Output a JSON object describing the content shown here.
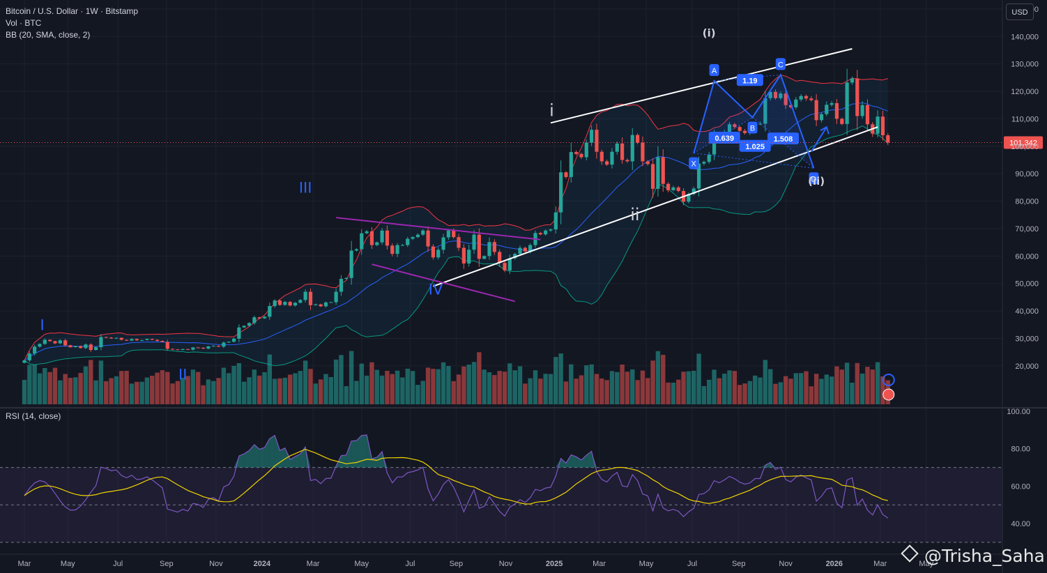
{
  "header": {
    "symbol_line": "Bitcoin / U.S. Dollar · 1W · Bitstamp",
    "vol_line": "Vol · BTC",
    "bb_line": "BB (20, SMA, close, 2)",
    "rsi_line": "RSI (14, close)"
  },
  "currency_button": "USD",
  "last_price": "101,342",
  "watermark": "@Trisha_Saha",
  "colors": {
    "background": "#131722",
    "up": "#26a69a",
    "down": "#ef5350",
    "bb_upper": "#f23645",
    "bb_lower": "#089981",
    "bb_basis": "#2962ff",
    "rsi_line": "#7e57c2",
    "rsi_ma": "#f2d400",
    "pattern": "#2962ff",
    "wedge": "#9c27b0",
    "channel": "#ffffff"
  },
  "chart_data": [
    {
      "type": "candlestick",
      "title": "Bitcoin / U.S. Dollar · 1W · Bitstamp",
      "scale": "linear",
      "ylim": [
        6000,
        152000
      ],
      "y_ticks": [
        "150,000",
        "140,000",
        "130,000",
        "120,000",
        "110,000",
        "100,000",
        "90,000",
        "80,000",
        "70,000",
        "60,000",
        "50,000",
        "40,000",
        "30,000",
        "20,000"
      ],
      "x_ticks": [
        {
          "label": "Mar",
          "t": 0
        },
        {
          "label": "May",
          "t": 8.5
        },
        {
          "label": "Jul",
          "t": 18.3
        },
        {
          "label": "Sep",
          "t": 27.8
        },
        {
          "label": "Nov",
          "t": 37.5
        },
        {
          "label": "2024",
          "t": 46.5
        },
        {
          "label": "Mar",
          "t": 56.5
        },
        {
          "label": "May",
          "t": 66
        },
        {
          "label": "Jul",
          "t": 75.5
        },
        {
          "label": "Sep",
          "t": 84.5
        },
        {
          "label": "Nov",
          "t": 94.2
        },
        {
          "label": "2025",
          "t": 103.7
        },
        {
          "label": "Mar",
          "t": 112.5
        },
        {
          "label": "May",
          "t": 121.7
        },
        {
          "label": "Jul",
          "t": 130.7
        },
        {
          "label": "Sep",
          "t": 139.8
        },
        {
          "label": "Nov",
          "t": 149
        },
        {
          "label": "2026",
          "t": 158.5
        },
        {
          "label": "Mar",
          "t": 167.5
        },
        {
          "label": "May",
          "t": 176.5
        }
      ],
      "week_axis": "t = weeks since the Mar 2023 tick",
      "close": [
        22000,
        24500,
        27000,
        28000,
        29500,
        29000,
        28200,
        29300,
        27500,
        26800,
        27200,
        26500,
        27800,
        25800,
        26800,
        30500,
        30300,
        30000,
        30200,
        29500,
        29200,
        29800,
        29300,
        29400,
        29800,
        29500,
        29100,
        28700,
        26200,
        26000,
        25800,
        26100,
        25900,
        26700,
        26600,
        26300,
        27100,
        27300,
        27000,
        28500,
        28800,
        29900,
        34000,
        34600,
        35600,
        37700,
        37300,
        37900,
        41800,
        43800,
        42200,
        43300,
        42000,
        43000,
        44000,
        47000,
        42100,
        42400,
        41700,
        43100,
        43200,
        47000,
        51700,
        52000,
        62000,
        62500,
        68300,
        69000,
        64000,
        65000,
        69300,
        63800,
        60800,
        64000,
        64000,
        66300,
        66900,
        67800,
        69300,
        63500,
        59500,
        62300,
        66800,
        69300,
        66900,
        63000,
        57300,
        62300,
        67800,
        59000,
        60000,
        65100,
        61500,
        57500,
        54800,
        59200,
        60800,
        63000,
        61700,
        64000,
        68400,
        67900,
        69300,
        69700,
        75900,
        90500,
        88800,
        97900,
        97200,
        96000,
        101300,
        106000,
        98000,
        94500,
        93300,
        98000,
        101000,
        95000,
        94500,
        104100,
        101300,
        94500,
        93500,
        84500,
        96000,
        86300,
        84000,
        85000,
        83700,
        79800,
        82600,
        84600,
        93700,
        94300,
        97000,
        104000,
        103000,
        105200,
        108000,
        107000,
        105600,
        104800,
        105600,
        108200,
        108200,
        117500,
        119800,
        117500,
        119200,
        115000,
        114200,
        117000,
        118300,
        117400,
        116800,
        109500,
        111700,
        115100,
        115700,
        110000,
        108100,
        123200,
        124700,
        111000,
        115000,
        108000,
        104600,
        110800,
        104000,
        101342
      ],
      "volume_note": "Vol · BTC histogram under price; colored by candle direction",
      "indicators": [
        "BB (20, SMA, close, 2)"
      ],
      "annotations": [
        {
          "text": "I",
          "t": 3.5,
          "y": 33000,
          "color": "#2962ff"
        },
        {
          "text": "II",
          "t": 31,
          "y": 15000,
          "color": "#2962ff"
        },
        {
          "text": "III",
          "t": 55,
          "y": 83000,
          "color": "#2962ff"
        },
        {
          "text": "IV",
          "t": 80.5,
          "y": 46000,
          "color": "#2962ff"
        },
        {
          "text": "i",
          "t": 103.2,
          "y": 111000,
          "color": "#d1d4dc"
        },
        {
          "text": "ii",
          "t": 119.5,
          "y": 73000,
          "color": "#d1d4dc"
        },
        {
          "text": "(i)",
          "t": 134,
          "y": 140000,
          "color": "#d1d4dc"
        },
        {
          "text": "(ii)",
          "t": 155,
          "y": 86000,
          "color": "#d1d4dc"
        }
      ],
      "pattern_points": [
        {
          "label": "X",
          "t": 131,
          "y": 97500
        },
        {
          "label": "A",
          "t": 135,
          "y": 123800
        },
        {
          "label": "B",
          "t": 142.5,
          "y": 110500
        },
        {
          "label": "C",
          "t": 148,
          "y": 126000
        },
        {
          "label": "D",
          "t": 154.5,
          "y": 92000
        }
      ],
      "pattern_ratios": [
        {
          "label": "1.19",
          "t": 142,
          "y": 124000
        },
        {
          "label": "0.639",
          "t": 137,
          "y": 103000
        },
        {
          "label": "1.025",
          "t": 143,
          "y": 100000
        },
        {
          "label": "1.508",
          "t": 148.5,
          "y": 102700
        }
      ],
      "channel_lines": [
        {
          "from": {
            "t": 103,
            "y": 108500
          },
          "to": {
            "t": 162,
            "y": 135500
          }
        },
        {
          "from": {
            "t": 80,
            "y": 49000
          },
          "to": {
            "t": 167,
            "y": 107000
          }
        }
      ],
      "wedge_lines": [
        {
          "from": {
            "t": 61,
            "y": 74000
          },
          "to": {
            "t": 101,
            "y": 66000
          }
        },
        {
          "from": {
            "t": 68,
            "y": 57000
          },
          "to": {
            "t": 96,
            "y": 43500
          }
        }
      ],
      "projection_arrow": {
        "from": {
          "t": 154,
          "y": 98000
        },
        "to": {
          "t": 157,
          "y": 107000
        }
      }
    },
    {
      "type": "line",
      "title": "RSI (14, close)",
      "ylim": [
        30,
        100
      ],
      "y_ticks": [
        "100.00",
        "80.00",
        "60.00",
        "40.00"
      ],
      "bands": [
        70,
        50,
        30
      ],
      "series_note": "RSI line (purple) and its moving average (yellow); derived from the closes above"
    }
  ]
}
